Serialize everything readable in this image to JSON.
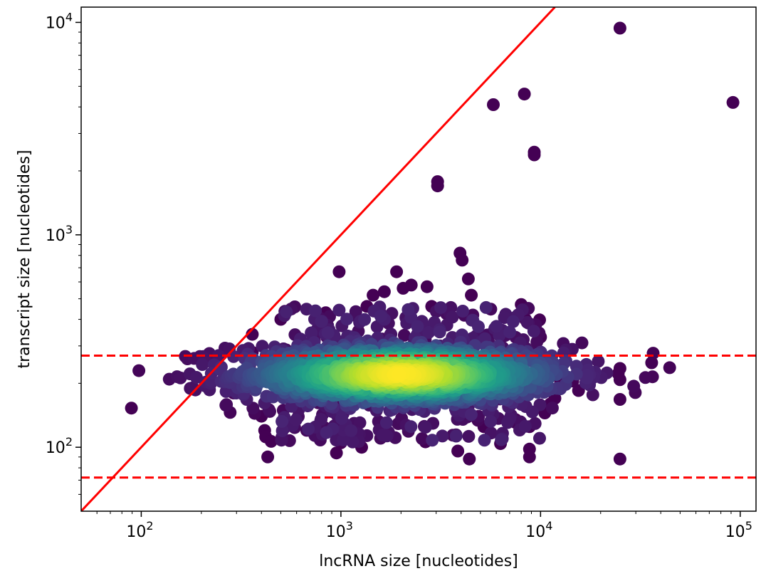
{
  "chart_data": {
    "type": "scatter",
    "title": "",
    "xlabel": "lncRNA size [nucleotides]",
    "ylabel": "transcript size [nucleotides]",
    "xscale": "log",
    "yscale": "log",
    "xlim": [
      50,
      120000
    ],
    "ylim": [
      50,
      11800
    ],
    "grid": false,
    "legend": "none",
    "x_ticks": [
      {
        "value": 100,
        "base": "10",
        "exp": "2"
      },
      {
        "value": 1000,
        "base": "10",
        "exp": "3"
      },
      {
        "value": 10000,
        "base": "10",
        "exp": "4"
      },
      {
        "value": 100000,
        "base": "10",
        "exp": "5"
      }
    ],
    "y_ticks": [
      {
        "value": 100,
        "base": "10",
        "exp": "2"
      },
      {
        "value": 1000,
        "base": "10",
        "exp": "3"
      },
      {
        "value": 10000,
        "base": "10",
        "exp": "4"
      }
    ],
    "reference_lines": [
      {
        "kind": "diagonal",
        "equation": "y = x",
        "color": "#ff0000",
        "style": "solid"
      },
      {
        "kind": "horizontal",
        "y": 270,
        "color": "#ff0000",
        "style": "dashed"
      },
      {
        "kind": "horizontal",
        "y": 72,
        "color": "#ff0000",
        "style": "dashed"
      }
    ],
    "colormap": "viridis",
    "density_core": {
      "center_x": 2000,
      "center_y": 220
    },
    "outliers": [
      {
        "x": 25000,
        "y": 9400
      },
      {
        "x": 8300,
        "y": 4600
      },
      {
        "x": 5800,
        "y": 4100
      },
      {
        "x": 92000,
        "y": 4200
      },
      {
        "x": 9300,
        "y": 2450
      },
      {
        "x": 9300,
        "y": 2380
      },
      {
        "x": 3050,
        "y": 1780
      },
      {
        "x": 3050,
        "y": 1700
      },
      {
        "x": 3950,
        "y": 820
      },
      {
        "x": 4050,
        "y": 760
      },
      {
        "x": 980,
        "y": 670
      },
      {
        "x": 1900,
        "y": 670
      },
      {
        "x": 4350,
        "y": 620
      },
      {
        "x": 1450,
        "y": 520
      },
      {
        "x": 1650,
        "y": 540
      },
      {
        "x": 2050,
        "y": 560
      },
      {
        "x": 2250,
        "y": 580
      },
      {
        "x": 2700,
        "y": 570
      },
      {
        "x": 4500,
        "y": 520
      },
      {
        "x": 8000,
        "y": 470
      },
      {
        "x": 2850,
        "y": 460
      },
      {
        "x": 1350,
        "y": 460
      },
      {
        "x": 840,
        "y": 430
      },
      {
        "x": 8400,
        "y": 400
      },
      {
        "x": 500,
        "y": 400
      },
      {
        "x": 360,
        "y": 340
      },
      {
        "x": 10000,
        "y": 330
      },
      {
        "x": 36000,
        "y": 250
      },
      {
        "x": 25000,
        "y": 235
      },
      {
        "x": 24500,
        "y": 222
      },
      {
        "x": 25000,
        "y": 208
      },
      {
        "x": 15500,
        "y": 222
      },
      {
        "x": 14500,
        "y": 205
      },
      {
        "x": 12500,
        "y": 210
      },
      {
        "x": 15500,
        "y": 185
      },
      {
        "x": 25000,
        "y": 168
      },
      {
        "x": 290,
        "y": 180
      },
      {
        "x": 335,
        "y": 195
      },
      {
        "x": 350,
        "y": 245
      },
      {
        "x": 360,
        "y": 280
      },
      {
        "x": 400,
        "y": 140
      },
      {
        "x": 415,
        "y": 120
      },
      {
        "x": 420,
        "y": 112
      },
      {
        "x": 430,
        "y": 90
      },
      {
        "x": 1000,
        "y": 105
      },
      {
        "x": 950,
        "y": 94
      },
      {
        "x": 1270,
        "y": 100
      },
      {
        "x": 2650,
        "y": 106
      },
      {
        "x": 3850,
        "y": 96
      },
      {
        "x": 4400,
        "y": 88
      },
      {
        "x": 6300,
        "y": 104
      },
      {
        "x": 8800,
        "y": 98
      },
      {
        "x": 8800,
        "y": 90
      },
      {
        "x": 25000,
        "y": 88
      },
      {
        "x": 8800,
        "y": 125
      },
      {
        "x": 10500,
        "y": 145
      },
      {
        "x": 11200,
        "y": 160
      },
      {
        "x": 11800,
        "y": 170
      },
      {
        "x": 5200,
        "y": 125
      },
      {
        "x": 7500,
        "y": 135
      }
    ]
  }
}
